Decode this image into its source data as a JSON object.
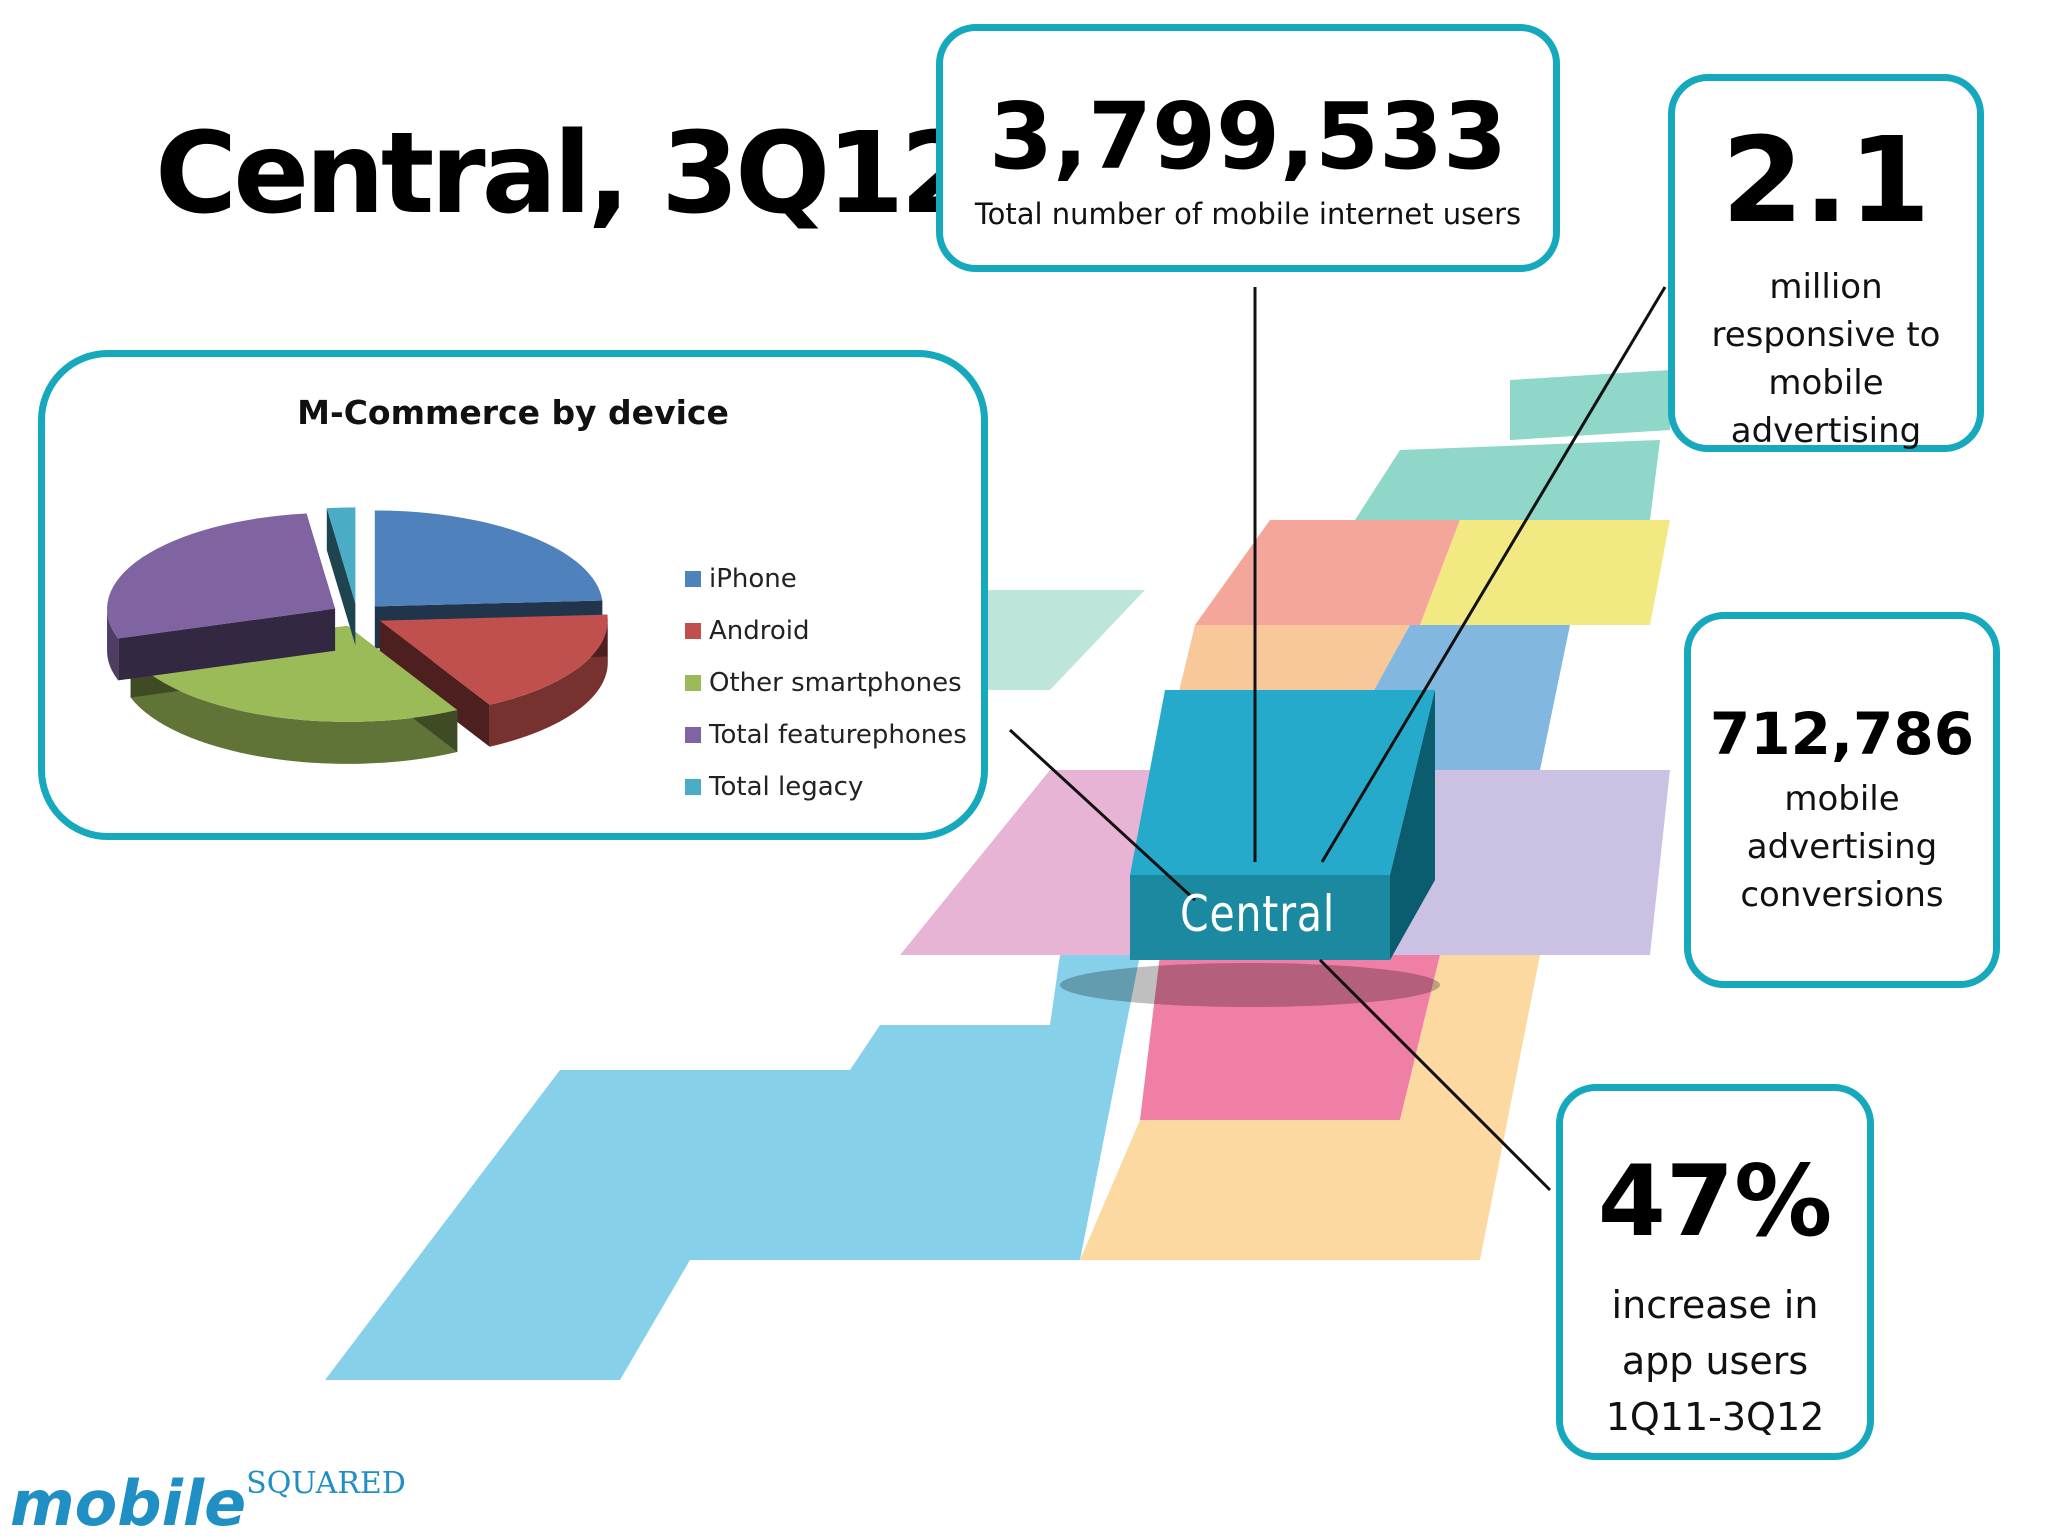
{
  "title": "Central, 3Q12",
  "stats": {
    "internet_users": {
      "value": "3,799,533",
      "caption": "Total number of mobile internet users"
    },
    "responsive": {
      "value": "2.1",
      "caption_lines": [
        "million",
        "responsive to",
        "mobile",
        "advertising"
      ]
    },
    "conversions": {
      "value": "712,786",
      "caption_lines": [
        "mobile",
        "advertising",
        "conversions"
      ]
    },
    "app_increase": {
      "value": "47%",
      "caption_lines": [
        "increase in",
        "app users",
        "1Q11-3Q12"
      ]
    }
  },
  "map_label": "Central",
  "logo": {
    "main": "mobile",
    "sup": "SQUARED"
  },
  "colors": {
    "accent": "#16a8bc",
    "iphone": "#4f81bd",
    "android": "#c0504d",
    "other_smartphones": "#9bbb59",
    "total_featurephones": "#8064a2",
    "total_legacy": "#4bacc6"
  },
  "chart_data": {
    "type": "pie",
    "title": "M-Commerce by device",
    "style": "3d-exploded",
    "legend_position": "right",
    "categories": [
      "iPhone",
      "Android",
      "Other smartphones",
      "Total featurephones",
      "Total legacy"
    ],
    "values": [
      24,
      18,
      28,
      28,
      2
    ]
  }
}
